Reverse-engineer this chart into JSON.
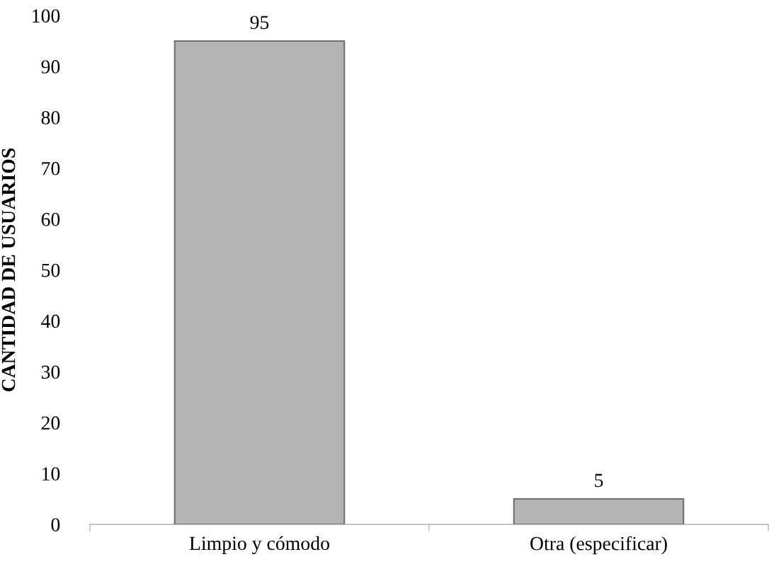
{
  "chart_data": {
    "type": "bar",
    "ylabel": "CANTIDAD DE USUARIOS",
    "categories": [
      "Limpio y cómodo",
      "Otra (especificar)"
    ],
    "values": [
      95,
      5
    ],
    "color": "#b3b3b3",
    "ylim": [
      0,
      100
    ],
    "yticks": [
      0,
      10,
      20,
      30,
      40,
      50,
      60,
      70,
      80,
      90,
      100
    ],
    "data_labels": true,
    "grid": false,
    "legend": false
  }
}
